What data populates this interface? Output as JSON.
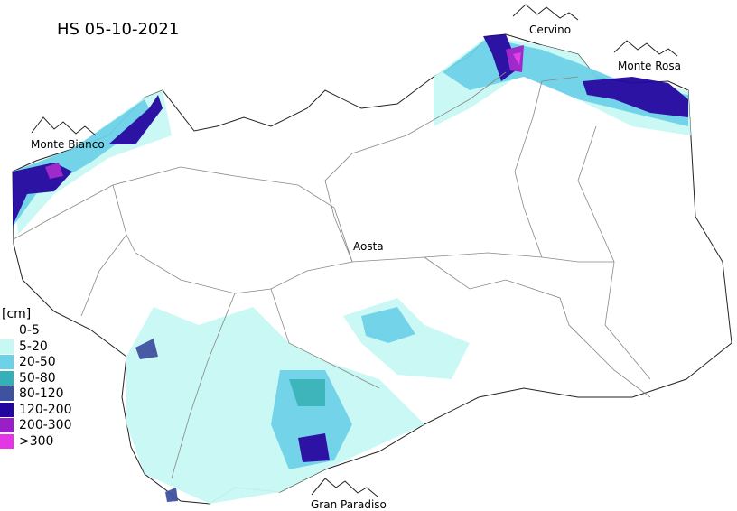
{
  "title": "HS 05-10-2021",
  "places": {
    "cervino": "Cervino",
    "monte_rosa": "Monte Rosa",
    "monte_bianco": "Monte Bianco",
    "aosta": "Aosta",
    "gran_paradiso": "Gran Paradiso"
  },
  "legend": {
    "unit": "[cm]",
    "classes": [
      {
        "label": "0-5",
        "color": "#ffffff"
      },
      {
        "label": "5-20",
        "color": "#c8f8f4"
      },
      {
        "label": "20-50",
        "color": "#6cd2e8"
      },
      {
        "label": "50-80",
        "color": "#34b0b8"
      },
      {
        "label": "80-120",
        "color": "#3f52a0"
      },
      {
        "label": "120-200",
        "color": "#22079f"
      },
      {
        "label": "200-300",
        "color": "#9a1fc8"
      },
      {
        "label": ">300",
        "color": "#e436e4"
      }
    ]
  }
}
